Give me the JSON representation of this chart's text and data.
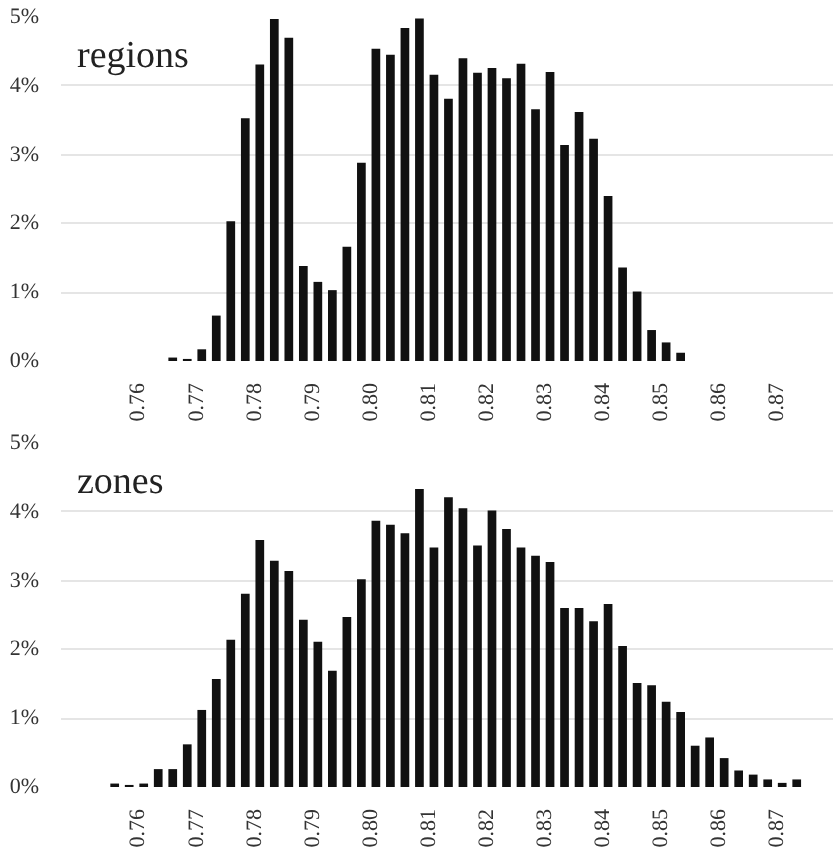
{
  "chart_data": [
    {
      "type": "bar",
      "title": "regions",
      "x": [
        0.76625,
        0.76875,
        0.77125,
        0.77375,
        0.77625,
        0.77875,
        0.78125,
        0.78375,
        0.78625,
        0.78875,
        0.79125,
        0.79375,
        0.79625,
        0.79875,
        0.80125,
        0.80375,
        0.80625,
        0.80875,
        0.81125,
        0.81375,
        0.81625,
        0.81875,
        0.82125,
        0.82375,
        0.82625,
        0.82875,
        0.83125,
        0.83375,
        0.83625,
        0.83875,
        0.84125,
        0.84375,
        0.84625,
        0.84875,
        0.85125,
        0.85375
      ],
      "values": [
        0.05,
        0.03,
        0.17,
        0.66,
        2.03,
        3.53,
        4.31,
        4.97,
        4.7,
        1.38,
        1.15,
        1.03,
        1.66,
        2.88,
        4.54,
        4.45,
        4.84,
        4.98,
        4.16,
        3.81,
        4.4,
        4.19,
        4.26,
        4.11,
        4.32,
        3.66,
        4.2,
        3.14,
        3.62,
        3.23,
        2.4,
        1.36,
        1.01,
        0.45,
        0.27,
        0.12
      ],
      "color": "#111111",
      "xlim": [
        0.747,
        0.88
      ],
      "ylim": [
        0,
        5
      ],
      "xticks": [
        0.76,
        0.77,
        0.78,
        0.79,
        {
          "value": 0.8,
          "label": "0.80"
        },
        0.81,
        0.82,
        0.83,
        0.84,
        0.85,
        0.86,
        0.87
      ],
      "yticks": [
        {
          "value": 0,
          "label": "0%"
        },
        {
          "value": 1,
          "label": "1%"
        },
        {
          "value": 2,
          "label": "2%"
        },
        {
          "value": 3,
          "label": "3%"
        },
        {
          "value": 4,
          "label": "4%"
        },
        {
          "value": 5,
          "label": "5%"
        }
      ],
      "grid": "y"
    },
    {
      "type": "bar",
      "title": "zones",
      "x": [
        0.75625,
        0.75875,
        0.76125,
        0.76375,
        0.76625,
        0.76875,
        0.77125,
        0.77375,
        0.77625,
        0.77875,
        0.78125,
        0.78375,
        0.78625,
        0.78875,
        0.79125,
        0.79375,
        0.79625,
        0.79875,
        0.80125,
        0.80375,
        0.80625,
        0.80875,
        0.81125,
        0.81375,
        0.81625,
        0.81875,
        0.82125,
        0.82375,
        0.82625,
        0.82875,
        0.83125,
        0.83375,
        0.83625,
        0.83875,
        0.84125,
        0.84375,
        0.84625,
        0.84875,
        0.85125,
        0.85375,
        0.85625,
        0.85875,
        0.86125,
        0.86375,
        0.86625,
        0.86875,
        0.87125,
        0.87375
      ],
      "values": [
        0.05,
        0.03,
        0.05,
        0.26,
        0.26,
        0.62,
        1.12,
        1.57,
        2.14,
        2.81,
        3.59,
        3.29,
        3.14,
        2.43,
        2.11,
        1.69,
        2.47,
        3.02,
        3.87,
        3.81,
        3.69,
        4.33,
        3.48,
        4.21,
        4.05,
        3.51,
        4.02,
        3.75,
        3.48,
        3.36,
        3.27,
        2.6,
        2.6,
        2.41,
        2.66,
        2.05,
        1.51,
        1.48,
        1.24,
        1.09,
        0.6,
        0.72,
        0.42,
        0.24,
        0.18,
        0.11,
        0.06,
        0.11
      ],
      "color": "#111111",
      "xlim": [
        0.747,
        0.88
      ],
      "ylim": [
        0,
        5
      ],
      "xticks": [
        0.76,
        0.77,
        0.78,
        0.79,
        {
          "value": 0.8,
          "label": "0.80"
        },
        0.81,
        0.82,
        0.83,
        0.84,
        0.85,
        0.86,
        0.87
      ],
      "yticks": [
        {
          "value": 0,
          "label": "0%"
        },
        {
          "value": 1,
          "label": "1%"
        },
        {
          "value": 2,
          "label": "2%"
        },
        {
          "value": 3,
          "label": "3%"
        },
        {
          "value": 4,
          "label": "4%"
        },
        {
          "value": 5,
          "label": "5%"
        }
      ],
      "grid": "y"
    }
  ]
}
